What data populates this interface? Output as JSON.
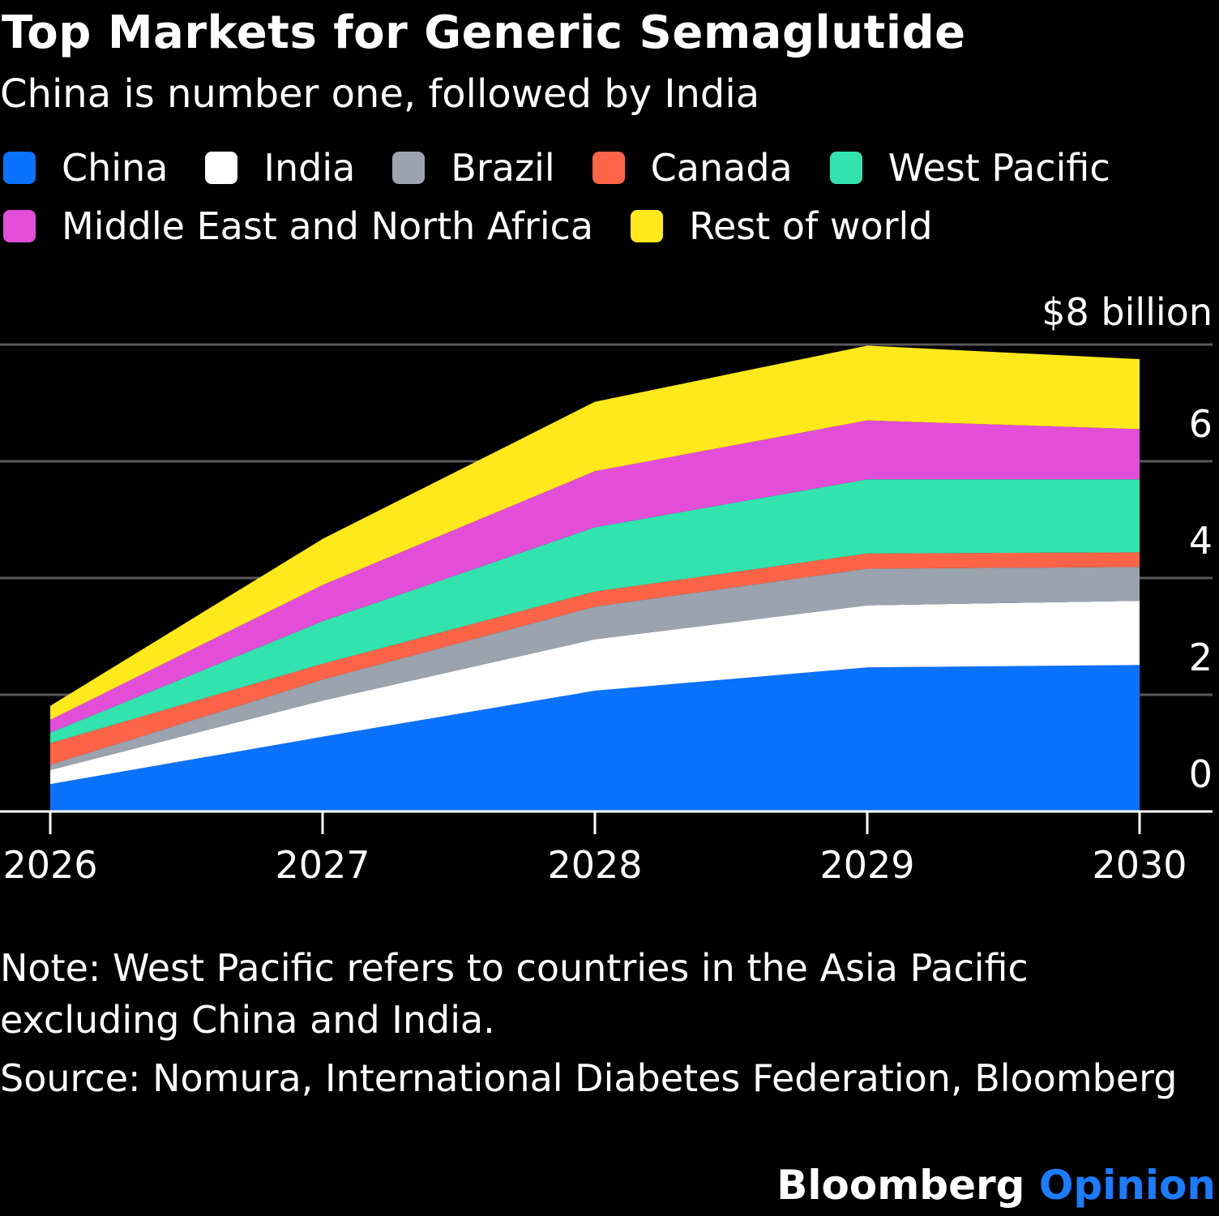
{
  "header": {
    "title": "Top Markets for Generic Semaglutide",
    "subtitle": "China is number one, followed by India"
  },
  "legend": {
    "rows": [
      [
        {
          "label": "China",
          "color": "#0a72ff"
        },
        {
          "label": "India",
          "color": "#ffffff"
        },
        {
          "label": "Brazil",
          "color": "#9aa3ae"
        },
        {
          "label": "Canada",
          "color": "#ff6449"
        }
      ],
      [
        {
          "label": "West Pacific",
          "color": "#32e3ae"
        }
      ],
      [
        {
          "label": "Middle East and North Africa",
          "color": "#e24ed8"
        },
        {
          "label": "Rest of world",
          "color": "#ffe81c"
        }
      ]
    ]
  },
  "chart_data": {
    "type": "area",
    "stacked": true,
    "x": [
      "2026",
      "2027",
      "2028",
      "2029",
      "2030"
    ],
    "ylim": [
      0,
      8
    ],
    "y_unit_label": "$8 billion",
    "y_ticks": [
      "0",
      "2",
      "4",
      "6",
      "$8 billion"
    ],
    "y_tick_values": [
      0,
      2,
      4,
      6,
      8
    ],
    "grid": true,
    "legend_position": "top",
    "series": [
      {
        "name": "China",
        "color": "#0a72ff",
        "values": [
          0.47,
          1.28,
          2.07,
          2.47,
          2.51
        ]
      },
      {
        "name": "India",
        "color": "#ffffff",
        "values": [
          0.24,
          0.62,
          0.88,
          1.06,
          1.1
        ]
      },
      {
        "name": "Brazil",
        "color": "#9aa3ae",
        "values": [
          0.09,
          0.36,
          0.56,
          0.63,
          0.58
        ]
      },
      {
        "name": "Canada",
        "color": "#ff6449",
        "values": [
          0.37,
          0.27,
          0.26,
          0.26,
          0.25
        ]
      },
      {
        "name": "West Pacific",
        "color": "#32e3ae",
        "values": [
          0.18,
          0.73,
          1.1,
          1.27,
          1.25
        ]
      },
      {
        "name": "Middle East and North Africa",
        "color": "#e24ed8",
        "values": [
          0.22,
          0.62,
          0.96,
          1.01,
          0.86
        ]
      },
      {
        "name": "Rest of world",
        "color": "#ffe81c",
        "values": [
          0.24,
          0.79,
          1.19,
          1.28,
          1.2
        ]
      }
    ]
  },
  "footer": {
    "note": "Note: West Pacific refers to countries in the Asia Pacific excluding China and India.",
    "source": "Source: Nomura, International Diabetes Federation, Bloomberg",
    "brand_main": "Bloomberg",
    "brand_accent": "Opinion"
  },
  "colors": {
    "background": "#000000",
    "gridline": "#5a5a5a",
    "axis": "#ffffff",
    "brand_accent": "#1a7cff"
  }
}
